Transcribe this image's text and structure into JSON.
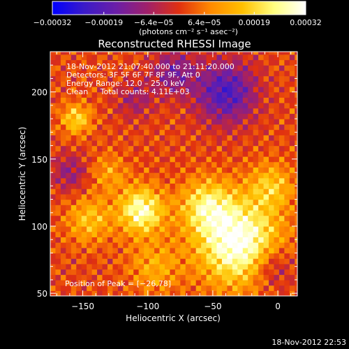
{
  "chart_data": {
    "type": "heatmap",
    "title": "Reconstructed RHESSI Image",
    "xlabel": "Heliocentric X (arcsec)",
    "ylabel": "Heliocentric Y (arcsec)",
    "xlim": [
      -175,
      15
    ],
    "ylim": [
      48,
      230
    ],
    "x_ticks": [
      -150,
      -100,
      -50,
      0
    ],
    "x_tick_labels": [
      "−150",
      "−100",
      "−50",
      "0"
    ],
    "y_ticks": [
      50,
      100,
      150,
      200
    ],
    "y_tick_labels": [
      "50",
      "100",
      "150",
      "200"
    ],
    "colorbar": {
      "range": [
        -0.00032,
        0.00032
      ],
      "ticks": [
        -0.00032,
        -0.00019,
        -6.4e-05,
        6.4e-05,
        0.00019,
        0.00032
      ],
      "tick_labels": [
        "−0.00032",
        "−0.00019",
        "−6.4e−05",
        "6.4e−05",
        "0.00019",
        "0.00032"
      ],
      "unit_label": "(photons cm⁻² s⁻¹ asec⁻²)"
    },
    "colors": [
      "#0000ff",
      "#3a1ac8",
      "#6a1fa8",
      "#a0206a",
      "#e03010",
      "#ff8a00",
      "#ffc000",
      "#ffff80",
      "#ffffff"
    ],
    "info_lines": [
      "18‑Nov‑2012 21:07:40.000 to 21:11:20.000",
      "Detectors: 3F 5F 6F 7F 8F 9F, Att 0",
      "Energy Range: 12.0 – 25.0 keV",
      "Clean     Total counts: 4.11E+03"
    ],
    "peak_label": "Position of Peak = [−26,78]",
    "peak_position": [
      -26,
      78
    ],
    "timestamp": "18‑Nov‑2012 22:53",
    "sources": [
      {
        "x": -30,
        "y": 88,
        "amplitude": 1.0,
        "sigma": 22
      },
      {
        "x": -105,
        "y": 112,
        "amplitude": 0.85,
        "sigma": 12
      },
      {
        "x": -55,
        "y": 115,
        "amplitude": 0.6,
        "sigma": 14
      },
      {
        "x": -145,
        "y": 105,
        "amplitude": 0.45,
        "sigma": 12
      },
      {
        "x": -155,
        "y": 180,
        "amplitude": 0.55,
        "sigma": 8
      },
      {
        "x": -5,
        "y": 130,
        "amplitude": 0.45,
        "sigma": 12
      },
      {
        "x": -95,
        "y": 70,
        "amplitude": 0.35,
        "sigma": 14
      },
      {
        "x": -130,
        "y": 140,
        "amplitude": 0.3,
        "sigma": 10
      },
      {
        "x": -40,
        "y": 200,
        "amplitude": -0.7,
        "sigma": 16
      },
      {
        "x": -80,
        "y": 215,
        "amplitude": -0.45,
        "sigma": 12
      },
      {
        "x": -5,
        "y": 70,
        "amplitude": -0.4,
        "sigma": 12
      },
      {
        "x": -160,
        "y": 140,
        "amplitude": -0.35,
        "sigma": 10
      },
      {
        "x": -110,
        "y": 195,
        "amplitude": -0.3,
        "sigma": 10
      }
    ],
    "baseline": 0.05
  }
}
